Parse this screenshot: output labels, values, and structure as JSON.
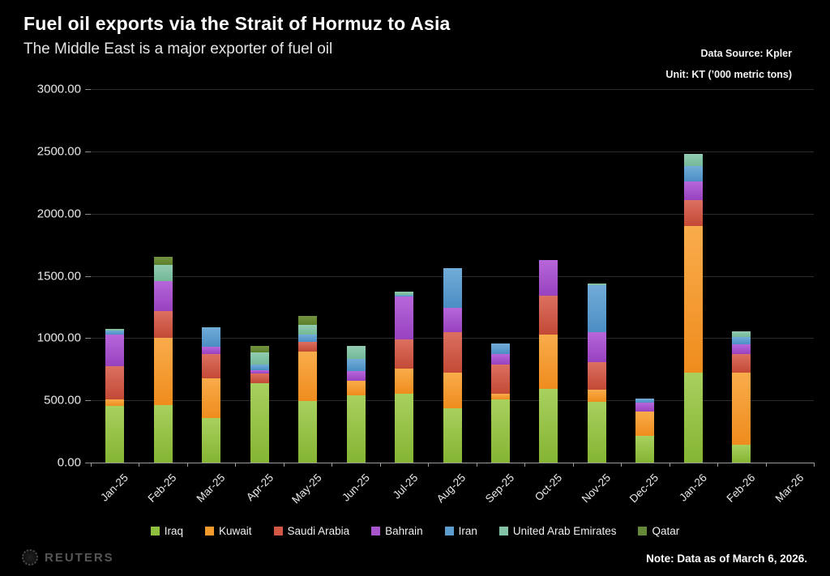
{
  "header": {
    "title": "Fuel oil exports via the Strait of Hormuz to Asia",
    "subtitle": "The Middle East is a major exporter of fuel oil",
    "data_source": "Data Source: Kpler",
    "unit": "Unit: KT (’000 metric tons)"
  },
  "chart_data": {
    "type": "bar",
    "stacked": true,
    "title": "Fuel oil exports via the Strait of Hormuz to Asia",
    "subtitle": "The Middle East is a major exporter of fuel oil",
    "unit": "KT ('000 metric tons)",
    "grid": true,
    "legend_position": "bottom",
    "ylim": [
      0,
      3000
    ],
    "yticks": [
      {
        "value": 3000,
        "label": "3000.00"
      },
      {
        "value": 2500,
        "label": "2500.00"
      },
      {
        "value": 2000,
        "label": "2000.00"
      },
      {
        "value": 1500,
        "label": "1500.00"
      },
      {
        "value": 1000,
        "label": "1000.00"
      },
      {
        "value": 500,
        "label": "500.00"
      },
      {
        "value": 0,
        "label": "0.00"
      }
    ],
    "categories": [
      "Jan-25",
      "Feb-25",
      "Mar-25",
      "Apr-25",
      "May-25",
      "Jun-25",
      "Jul-25",
      "Aug-25",
      "Sep-25",
      "Oct-25",
      "Nov-25",
      "Dec-25",
      "Jan-26",
      "Feb-26",
      "Mar-26"
    ],
    "series": [
      {
        "name": "Iraq",
        "color": "#8fbf3e",
        "gradient": [
          "#a8d05e",
          "#85b533"
        ],
        "values": [
          455,
          460,
          355,
          635,
          495,
          540,
          555,
          435,
          505,
          590,
          490,
          215,
          720,
          145,
          0
        ]
      },
      {
        "name": "Kuwait",
        "color": "#f39c2d",
        "gradient": [
          "#f9ac4b",
          "#ef8c1d"
        ],
        "values": [
          50,
          540,
          320,
          0,
          395,
          115,
          200,
          290,
          50,
          435,
          95,
          195,
          1180,
          580,
          0
        ]
      },
      {
        "name": "Saudi Arabia",
        "color": "#d25845",
        "gradient": [
          "#dc7060",
          "#c34936"
        ],
        "values": [
          270,
          220,
          195,
          80,
          80,
          0,
          235,
          325,
          230,
          315,
          220,
          0,
          210,
          145,
          0
        ]
      },
      {
        "name": "Bahrain",
        "color": "#a854cd",
        "gradient": [
          "#b767da",
          "#9742bf"
        ],
        "values": [
          250,
          235,
          60,
          30,
          0,
          80,
          345,
          195,
          85,
          290,
          240,
          70,
          150,
          80,
          0
        ]
      },
      {
        "name": "Iran",
        "color": "#5d9dce",
        "gradient": [
          "#72acd8",
          "#4b8ec4"
        ],
        "values": [
          35,
          0,
          160,
          45,
          60,
          95,
          15,
          315,
          85,
          0,
          380,
          35,
          120,
          60,
          0
        ]
      },
      {
        "name": "United Arab Emirates",
        "color": "#83c2a4",
        "gradient": [
          "#92ccb2",
          "#74b897"
        ],
        "values": [
          15,
          135,
          0,
          95,
          75,
          105,
          25,
          0,
          0,
          0,
          15,
          0,
          100,
          45,
          0
        ]
      },
      {
        "name": "Qatar",
        "color": "#678738",
        "gradient": [
          "#74943f",
          "#5c7f2b"
        ],
        "values": [
          0,
          60,
          0,
          50,
          70,
          0,
          0,
          0,
          0,
          0,
          0,
          0,
          0,
          0,
          0
        ]
      }
    ]
  },
  "footer": {
    "brand": "REUTERS",
    "note": "Note: Data as of March 6, 2026."
  }
}
